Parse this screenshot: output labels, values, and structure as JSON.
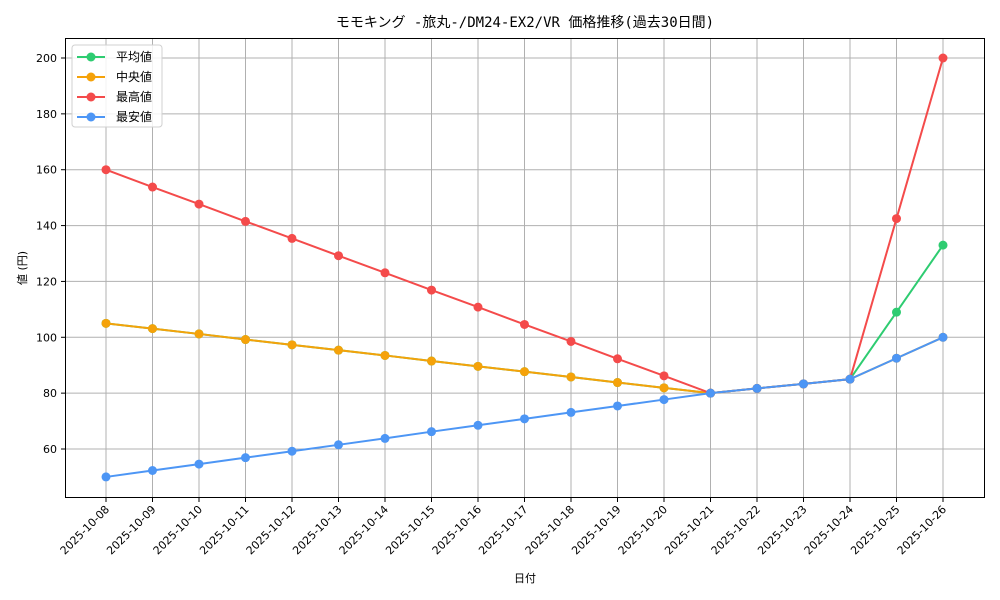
{
  "chart_data": {
    "type": "line",
    "title": "モモキング -旅丸-/DM24-EX2/VR 価格推移(過去30日間)",
    "xlabel": "日付",
    "ylabel": "値 (円)",
    "ylim": [
      42.5,
      207
    ],
    "yticks": [
      60,
      80,
      100,
      120,
      140,
      160,
      180,
      200
    ],
    "grid": true,
    "legend_position": "upper left",
    "x": [
      "2025-10-08",
      "2025-10-09",
      "2025-10-10",
      "2025-10-11",
      "2025-10-12",
      "2025-10-13",
      "2025-10-14",
      "2025-10-15",
      "2025-10-16",
      "2025-10-17",
      "2025-10-18",
      "2025-10-19",
      "2025-10-20",
      "2025-10-21",
      "2025-10-22",
      "2025-10-23",
      "2025-10-24",
      "2025-10-25",
      "2025-10-26"
    ],
    "series": [
      {
        "name": "平均値",
        "color": "#2ecc71",
        "values": [
          105,
          103.1,
          101.2,
          99.2,
          97.3,
          95.4,
          93.5,
          91.5,
          89.6,
          87.7,
          85.8,
          83.8,
          81.9,
          80,
          81.7,
          83.3,
          85,
          109,
          133
        ]
      },
      {
        "name": "中央値",
        "color": "#f5a20a",
        "values": [
          105,
          103.1,
          101.2,
          99.2,
          97.3,
          95.4,
          93.5,
          91.5,
          89.6,
          87.7,
          85.8,
          83.8,
          81.9,
          80,
          81.7,
          83.3,
          85,
          92.5,
          100
        ]
      },
      {
        "name": "最高値",
        "color": "#f44b4b",
        "values": [
          160,
          153.8,
          147.7,
          141.5,
          135.4,
          129.2,
          123.1,
          116.9,
          110.8,
          104.6,
          98.5,
          92.3,
          86.2,
          80,
          81.7,
          83.3,
          85,
          142.5,
          200
        ]
      },
      {
        "name": "最安値",
        "color": "#4d96f5",
        "values": [
          50,
          52.3,
          54.6,
          56.9,
          59.2,
          61.5,
          63.8,
          66.2,
          68.5,
          70.8,
          73.1,
          75.4,
          77.7,
          80,
          81.7,
          83.3,
          85,
          92.5,
          100
        ]
      }
    ]
  }
}
